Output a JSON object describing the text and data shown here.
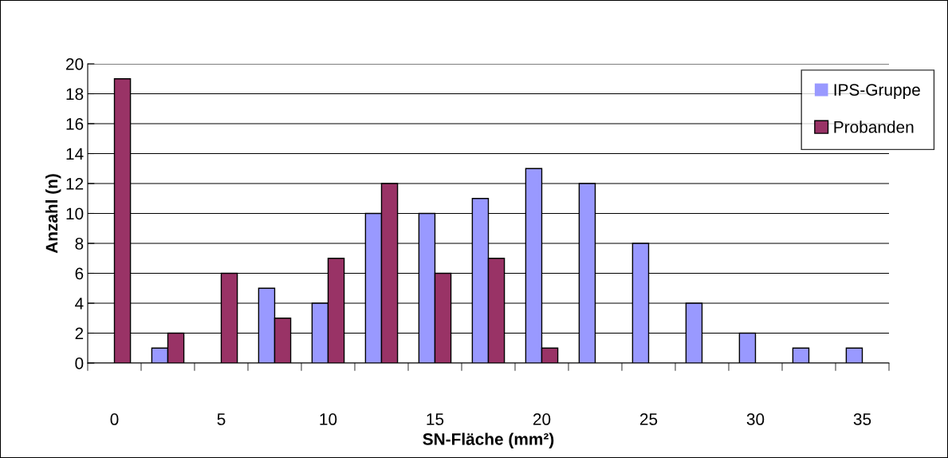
{
  "chart_data": {
    "type": "bar",
    "xlabel": "SN-Fläche (mm²)",
    "ylabel": "Anzahl (n)",
    "categories": [
      "0",
      null,
      "5",
      null,
      "10",
      null,
      "15",
      null,
      "20",
      null,
      "25",
      null,
      "30",
      null,
      "35"
    ],
    "series": [
      {
        "name": "IPS-Gruppe",
        "color": "#9999ff",
        "values": [
          0,
          1,
          0,
          5,
          4,
          10,
          10,
          11,
          13,
          12,
          8,
          4,
          2,
          1,
          1
        ]
      },
      {
        "name": "Probanden",
        "color": "#993366",
        "values": [
          19,
          2,
          6,
          3,
          7,
          12,
          6,
          7,
          1,
          0,
          0,
          0,
          0,
          0,
          0
        ]
      }
    ],
    "ylim": [
      0,
      20
    ],
    "yticks": [
      0,
      2,
      4,
      6,
      8,
      10,
      12,
      14,
      16,
      18,
      20
    ],
    "grid": "y",
    "legend": "top right"
  }
}
